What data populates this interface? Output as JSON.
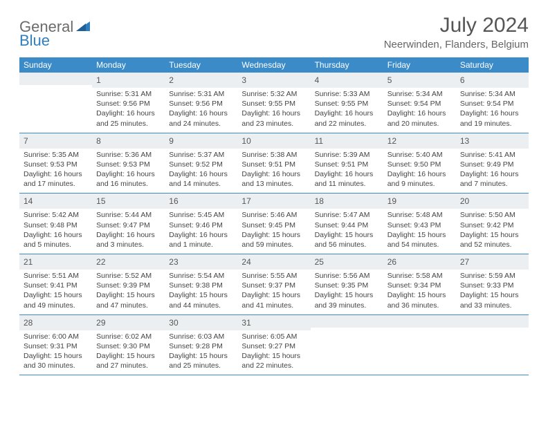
{
  "logo": {
    "text_part1": "General",
    "text_part2": "Blue",
    "color_gray": "#6b6b6b",
    "color_blue": "#2f7fc0"
  },
  "header": {
    "month_title": "July 2024",
    "location": "Neerwinden, Flanders, Belgium"
  },
  "colors": {
    "header_bg": "#3b8bc9",
    "header_text": "#ffffff",
    "daynum_bg": "#eceff1",
    "week_border": "#3b8bc9",
    "background": "#ffffff"
  },
  "typography": {
    "month_title_size": 30,
    "location_size": 15,
    "day_header_size": 12,
    "daynum_size": 12,
    "info_size": 10.5
  },
  "day_headers": [
    "Sunday",
    "Monday",
    "Tuesday",
    "Wednesday",
    "Thursday",
    "Friday",
    "Saturday"
  ],
  "weeks": [
    [
      {
        "day": "",
        "lines": []
      },
      {
        "day": "1",
        "lines": [
          "Sunrise: 5:31 AM",
          "Sunset: 9:56 PM",
          "Daylight: 16 hours and 25 minutes."
        ]
      },
      {
        "day": "2",
        "lines": [
          "Sunrise: 5:31 AM",
          "Sunset: 9:56 PM",
          "Daylight: 16 hours and 24 minutes."
        ]
      },
      {
        "day": "3",
        "lines": [
          "Sunrise: 5:32 AM",
          "Sunset: 9:55 PM",
          "Daylight: 16 hours and 23 minutes."
        ]
      },
      {
        "day": "4",
        "lines": [
          "Sunrise: 5:33 AM",
          "Sunset: 9:55 PM",
          "Daylight: 16 hours and 22 minutes."
        ]
      },
      {
        "day": "5",
        "lines": [
          "Sunrise: 5:34 AM",
          "Sunset: 9:54 PM",
          "Daylight: 16 hours and 20 minutes."
        ]
      },
      {
        "day": "6",
        "lines": [
          "Sunrise: 5:34 AM",
          "Sunset: 9:54 PM",
          "Daylight: 16 hours and 19 minutes."
        ]
      }
    ],
    [
      {
        "day": "7",
        "lines": [
          "Sunrise: 5:35 AM",
          "Sunset: 9:53 PM",
          "Daylight: 16 hours and 17 minutes."
        ]
      },
      {
        "day": "8",
        "lines": [
          "Sunrise: 5:36 AM",
          "Sunset: 9:53 PM",
          "Daylight: 16 hours and 16 minutes."
        ]
      },
      {
        "day": "9",
        "lines": [
          "Sunrise: 5:37 AM",
          "Sunset: 9:52 PM",
          "Daylight: 16 hours and 14 minutes."
        ]
      },
      {
        "day": "10",
        "lines": [
          "Sunrise: 5:38 AM",
          "Sunset: 9:51 PM",
          "Daylight: 16 hours and 13 minutes."
        ]
      },
      {
        "day": "11",
        "lines": [
          "Sunrise: 5:39 AM",
          "Sunset: 9:51 PM",
          "Daylight: 16 hours and 11 minutes."
        ]
      },
      {
        "day": "12",
        "lines": [
          "Sunrise: 5:40 AM",
          "Sunset: 9:50 PM",
          "Daylight: 16 hours and 9 minutes."
        ]
      },
      {
        "day": "13",
        "lines": [
          "Sunrise: 5:41 AM",
          "Sunset: 9:49 PM",
          "Daylight: 16 hours and 7 minutes."
        ]
      }
    ],
    [
      {
        "day": "14",
        "lines": [
          "Sunrise: 5:42 AM",
          "Sunset: 9:48 PM",
          "Daylight: 16 hours and 5 minutes."
        ]
      },
      {
        "day": "15",
        "lines": [
          "Sunrise: 5:44 AM",
          "Sunset: 9:47 PM",
          "Daylight: 16 hours and 3 minutes."
        ]
      },
      {
        "day": "16",
        "lines": [
          "Sunrise: 5:45 AM",
          "Sunset: 9:46 PM",
          "Daylight: 16 hours and 1 minute."
        ]
      },
      {
        "day": "17",
        "lines": [
          "Sunrise: 5:46 AM",
          "Sunset: 9:45 PM",
          "Daylight: 15 hours and 59 minutes."
        ]
      },
      {
        "day": "18",
        "lines": [
          "Sunrise: 5:47 AM",
          "Sunset: 9:44 PM",
          "Daylight: 15 hours and 56 minutes."
        ]
      },
      {
        "day": "19",
        "lines": [
          "Sunrise: 5:48 AM",
          "Sunset: 9:43 PM",
          "Daylight: 15 hours and 54 minutes."
        ]
      },
      {
        "day": "20",
        "lines": [
          "Sunrise: 5:50 AM",
          "Sunset: 9:42 PM",
          "Daylight: 15 hours and 52 minutes."
        ]
      }
    ],
    [
      {
        "day": "21",
        "lines": [
          "Sunrise: 5:51 AM",
          "Sunset: 9:41 PM",
          "Daylight: 15 hours and 49 minutes."
        ]
      },
      {
        "day": "22",
        "lines": [
          "Sunrise: 5:52 AM",
          "Sunset: 9:39 PM",
          "Daylight: 15 hours and 47 minutes."
        ]
      },
      {
        "day": "23",
        "lines": [
          "Sunrise: 5:54 AM",
          "Sunset: 9:38 PM",
          "Daylight: 15 hours and 44 minutes."
        ]
      },
      {
        "day": "24",
        "lines": [
          "Sunrise: 5:55 AM",
          "Sunset: 9:37 PM",
          "Daylight: 15 hours and 41 minutes."
        ]
      },
      {
        "day": "25",
        "lines": [
          "Sunrise: 5:56 AM",
          "Sunset: 9:35 PM",
          "Daylight: 15 hours and 39 minutes."
        ]
      },
      {
        "day": "26",
        "lines": [
          "Sunrise: 5:58 AM",
          "Sunset: 9:34 PM",
          "Daylight: 15 hours and 36 minutes."
        ]
      },
      {
        "day": "27",
        "lines": [
          "Sunrise: 5:59 AM",
          "Sunset: 9:33 PM",
          "Daylight: 15 hours and 33 minutes."
        ]
      }
    ],
    [
      {
        "day": "28",
        "lines": [
          "Sunrise: 6:00 AM",
          "Sunset: 9:31 PM",
          "Daylight: 15 hours and 30 minutes."
        ]
      },
      {
        "day": "29",
        "lines": [
          "Sunrise: 6:02 AM",
          "Sunset: 9:30 PM",
          "Daylight: 15 hours and 27 minutes."
        ]
      },
      {
        "day": "30",
        "lines": [
          "Sunrise: 6:03 AM",
          "Sunset: 9:28 PM",
          "Daylight: 15 hours and 25 minutes."
        ]
      },
      {
        "day": "31",
        "lines": [
          "Sunrise: 6:05 AM",
          "Sunset: 9:27 PM",
          "Daylight: 15 hours and 22 minutes."
        ]
      },
      {
        "day": "",
        "lines": []
      },
      {
        "day": "",
        "lines": []
      },
      {
        "day": "",
        "lines": []
      }
    ]
  ]
}
